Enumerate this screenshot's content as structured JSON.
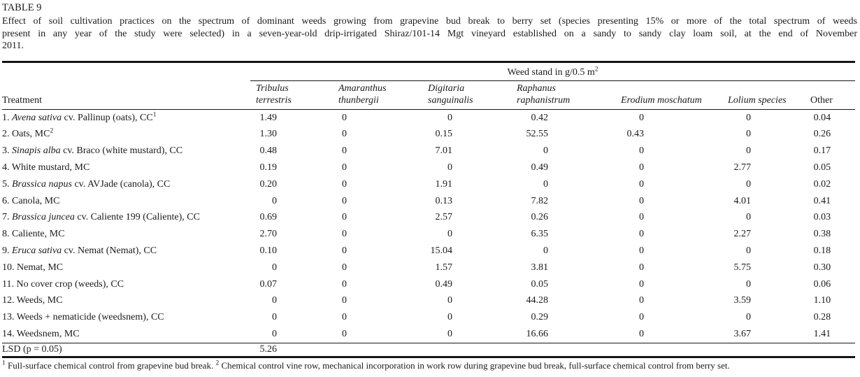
{
  "colors": {
    "background": "#ffffff",
    "text": "#1a1a1a",
    "rule": "#151515"
  },
  "table_number": "TABLE 9",
  "caption": {
    "lines": [
      "Effect of soil cultivation practices on the spectrum of dominant weeds growing from grapevine bud break to berry set (species presenting 15% or more of the total spectrum of weeds",
      "present in any year of the study were selected) in a seven-year-old drip-irrigated Shiraz/101-14 Mgt vineyard established on a sandy to sandy clay loam soil, at the end of November",
      "2011."
    ]
  },
  "table": {
    "span_header": {
      "text": "Weed stand in g/0.5 m",
      "sup": "2"
    },
    "treatment_header": "Treatment",
    "columns": [
      {
        "id": "tribulus-terrestris",
        "lines": [
          "Tribulus",
          "terrestris"
        ],
        "italic": true
      },
      {
        "id": "amaranthus-thunbergii",
        "lines": [
          "Amaranthus",
          "thunbergii"
        ],
        "italic": true
      },
      {
        "id": "digitaria-sanguinalis",
        "lines": [
          "Digitaria",
          "sanguinalis"
        ],
        "italic": true
      },
      {
        "id": "raphanus-raphanistrum",
        "lines": [
          "Raphanus",
          "raphanistrum"
        ],
        "italic": true
      },
      {
        "id": "erodium-moschatum",
        "lines": [
          "Erodium moschatum"
        ],
        "italic": true
      },
      {
        "id": "lolium-species",
        "lines": [
          "Lolium species"
        ],
        "italic": true
      },
      {
        "id": "other",
        "lines": [
          "Other"
        ],
        "italic": false
      }
    ],
    "rows": [
      {
        "label": [
          {
            "t": "1. "
          },
          {
            "t": "Avena sativa",
            "i": true
          },
          {
            "t": " cv. Pallinup (oats), CC"
          },
          {
            "t": "1",
            "s": true
          }
        ],
        "values": [
          "1.49",
          "0",
          "0",
          "0.42",
          "0",
          "0",
          "0.04"
        ]
      },
      {
        "label": [
          {
            "t": "2. Oats, MC"
          },
          {
            "t": "2",
            "s": true
          }
        ],
        "values": [
          "1.30",
          "0",
          "0.15",
          "52.55",
          "0.43",
          "0",
          "0.26"
        ]
      },
      {
        "label": [
          {
            "t": "3. "
          },
          {
            "t": "Sinapis alba",
            "i": true
          },
          {
            "t": " cv. Braco (white mustard), CC"
          }
        ],
        "values": [
          "0.48",
          "0",
          "7.01",
          "0",
          "0",
          "0",
          "0.17"
        ]
      },
      {
        "label": [
          {
            "t": "4. White mustard, MC"
          }
        ],
        "values": [
          "0.19",
          "0",
          "0",
          "0.49",
          "0",
          "2.77",
          "0.05"
        ]
      },
      {
        "label": [
          {
            "t": "5. "
          },
          {
            "t": "Brassica napus",
            "i": true
          },
          {
            "t": " cv. AVJade (canola), CC"
          }
        ],
        "values": [
          "0.20",
          "0",
          "1.91",
          "0",
          "0",
          "0",
          "0.02"
        ]
      },
      {
        "label": [
          {
            "t": "6. Canola, MC"
          }
        ],
        "values": [
          "0",
          "0",
          "0.13",
          "7.82",
          "0",
          "4.01",
          "0.41"
        ]
      },
      {
        "label": [
          {
            "t": "7. "
          },
          {
            "t": "Brassica juncea",
            "i": true
          },
          {
            "t": " cv. Caliente 199 (Caliente), CC"
          }
        ],
        "values": [
          "0.69",
          "0",
          "2.57",
          "0.26",
          "0",
          "0",
          "0.03"
        ]
      },
      {
        "label": [
          {
            "t": "8. Caliente, MC"
          }
        ],
        "values": [
          "2.70",
          "0",
          "0",
          "6.35",
          "0",
          "2.27",
          "0.38"
        ]
      },
      {
        "label": [
          {
            "t": "9. "
          },
          {
            "t": "Eruca sativa",
            "i": true
          },
          {
            "t": " cv. Nemat (Nemat), CC"
          }
        ],
        "values": [
          "0.10",
          "0",
          "15.04",
          "0",
          "0",
          "0",
          "0.18"
        ]
      },
      {
        "label": [
          {
            "t": "10. Nemat, MC"
          }
        ],
        "values": [
          "0",
          "0",
          "1.57",
          "3.81",
          "0",
          "5.75",
          "0.30"
        ]
      },
      {
        "label": [
          {
            "t": "11. No cover crop (weeds), CC"
          }
        ],
        "values": [
          "0.07",
          "0",
          "0.49",
          "0.05",
          "0",
          "0",
          "0.06"
        ]
      },
      {
        "label": [
          {
            "t": "12. Weeds, MC"
          }
        ],
        "values": [
          "0",
          "0",
          "0",
          "44.28",
          "0",
          "3.59",
          "1.10"
        ]
      },
      {
        "label": [
          {
            "t": "13. Weeds + nematicide (weedsnem), CC"
          }
        ],
        "values": [
          "0",
          "0",
          "0",
          "0.29",
          "0",
          "0",
          "0.28"
        ]
      },
      {
        "label": [
          {
            "t": "14. Weedsnem, MC"
          }
        ],
        "values": [
          "0",
          "0",
          "0",
          "16.66",
          "0",
          "3.67",
          "1.41"
        ]
      }
    ],
    "lsd_row": {
      "label": [
        {
          "t": "LSD (p = 0.05)"
        }
      ],
      "values": [
        "5.26",
        "",
        "",
        "",
        "",
        "",
        ""
      ]
    }
  },
  "footnote": {
    "parts": [
      {
        "t": "1",
        "s": true
      },
      {
        "t": " Full-surface chemical control from grapevine bud break. "
      },
      {
        "t": "2",
        "s": true
      },
      {
        "t": " Chemical control vine row, mechanical incorporation in work row during grapevine bud break, full-surface chemical control from berry set."
      }
    ]
  }
}
